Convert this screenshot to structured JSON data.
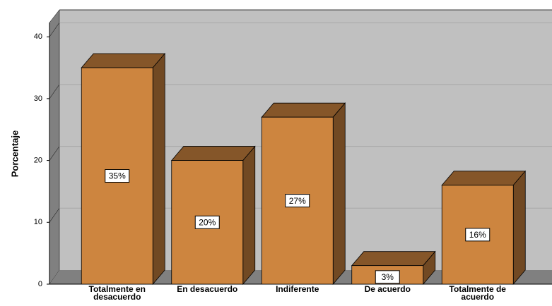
{
  "chart_data": {
    "type": "bar3d",
    "y_label": "Porcentaje",
    "categories": [
      "Totalmente en desacuerdo",
      "En desacuerdo",
      "Indiferente",
      "De acuerdo",
      "Totalmente de acuerdo"
    ],
    "values": [
      35,
      20,
      27,
      3,
      16
    ],
    "value_labels": [
      "35%",
      "20%",
      "27%",
      "3%",
      "16%"
    ],
    "color": "#cd853f",
    "ylim": [
      0,
      42.3
    ],
    "yticks": [
      0,
      10,
      20,
      30,
      40
    ],
    "grid": true
  }
}
